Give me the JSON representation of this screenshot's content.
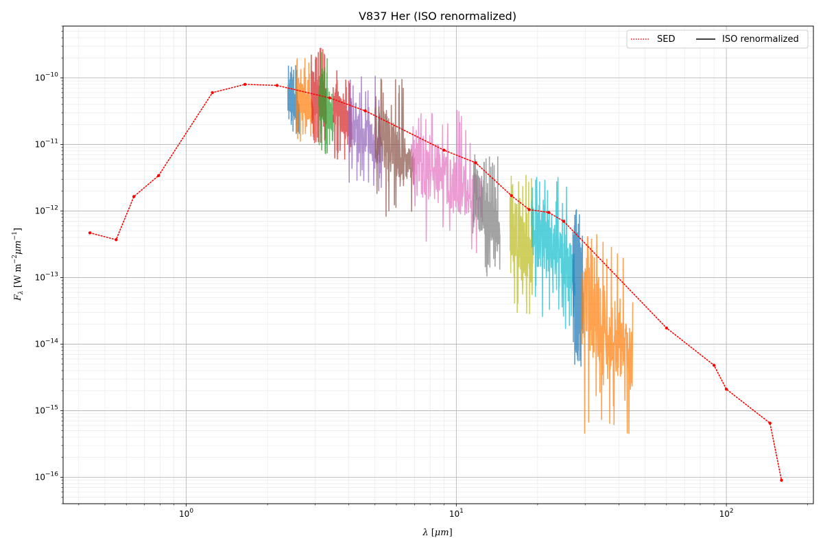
{
  "chart_data": {
    "type": "line",
    "title": "V837 Her (ISO renormalized)",
    "xlabel": {
      "lambda": "λ",
      "unit": "μm"
    },
    "ylabel": {
      "f": "F",
      "sub": "λ",
      "unit": "W m",
      "unit_exp": "−2",
      "per": "μm",
      "per_exp": "−1"
    },
    "x_scale": "log",
    "y_scale": "log",
    "xlim": [
      0.35,
      210
    ],
    "ylim": [
      4e-17,
      6e-10
    ],
    "x_ticks": [
      {
        "value": 1,
        "base": "10",
        "exp": "0"
      },
      {
        "value": 10,
        "base": "10",
        "exp": "1"
      },
      {
        "value": 100,
        "base": "10",
        "exp": "2"
      }
    ],
    "y_ticks": [
      {
        "value": 1e-10,
        "base": "10",
        "exp": "−10"
      },
      {
        "value": 1e-11,
        "base": "10",
        "exp": "−11"
      },
      {
        "value": 1e-12,
        "base": "10",
        "exp": "−12"
      },
      {
        "value": 1e-13,
        "base": "10",
        "exp": "−13"
      },
      {
        "value": 1e-14,
        "base": "10",
        "exp": "−14"
      },
      {
        "value": 1e-15,
        "base": "10",
        "exp": "−15"
      },
      {
        "value": 1e-16,
        "base": "10",
        "exp": "−16"
      }
    ],
    "grid": true,
    "legend_position": "top-right",
    "legend": [
      {
        "label": "SED",
        "style": "dotted",
        "color": "#ff0000"
      },
      {
        "label": "ISO renormalized",
        "style": "solid",
        "color": "#000000"
      }
    ],
    "sed": {
      "color": "#ff0000",
      "points": [
        [
          0.44,
          4.7e-13
        ],
        [
          0.55,
          3.7e-13
        ],
        [
          0.64,
          1.65e-12
        ],
        [
          0.79,
          3.4e-12
        ],
        [
          1.25,
          6e-11
        ],
        [
          1.65,
          8e-11
        ],
        [
          2.17,
          7.7e-11
        ],
        [
          3.4,
          5e-11
        ],
        [
          4.6,
          3.2e-11
        ],
        [
          9.0,
          8.2e-12
        ],
        [
          11.8,
          5.3e-12
        ],
        [
          16.0,
          1.7e-12
        ],
        [
          18.6,
          1.05e-12
        ],
        [
          22.0,
          9.5e-13
        ],
        [
          25.0,
          7e-13
        ],
        [
          60.0,
          1.75e-14
        ],
        [
          90.0,
          4.8e-15
        ],
        [
          100.0,
          2.1e-15
        ],
        [
          145.0,
          6.5e-16
        ],
        [
          160.0,
          9e-17
        ]
      ]
    },
    "iso_segments": [
      {
        "color": "#1f77b4",
        "x_range": [
          2.38,
          2.62
        ],
        "y_lo": 1.3e-11,
        "y_hi": 1e-10,
        "y_max": 1.7e-10
      },
      {
        "color": "#ff7f0e",
        "x_range": [
          2.55,
          2.95
        ],
        "y_lo": 1.1e-11,
        "y_hi": 1.2e-10,
        "y_max": 2.3e-10
      },
      {
        "color": "#d62728",
        "x_range": [
          2.9,
          3.3
        ],
        "y_lo": 1e-11,
        "y_hi": 1.5e-10,
        "y_max": 2.9e-10
      },
      {
        "color": "#2ca02c",
        "x_range": [
          3.1,
          3.5
        ],
        "y_lo": 7e-12,
        "y_hi": 1.2e-10,
        "y_max": 2.5e-10
      },
      {
        "color": "#d62728",
        "x_range": [
          3.5,
          4.1
        ],
        "y_lo": 6e-12,
        "y_hi": 8e-11,
        "y_max": 1.5e-10
      },
      {
        "color": "#9467bd",
        "x_range": [
          4.0,
          5.3
        ],
        "y_lo": 2e-12,
        "y_hi": 6e-11,
        "y_max": 1.2e-10
      },
      {
        "color": "#8c564b",
        "x_range": [
          5.0,
          7.0
        ],
        "y_lo": 8e-13,
        "y_hi": 5e-11,
        "y_max": 1e-10
      },
      {
        "color": "#e377c2",
        "x_range": [
          6.8,
          12.5
        ],
        "y_lo": 2e-13,
        "y_hi": 2.5e-11,
        "y_max": 3.3e-11
      },
      {
        "color": "#7f7f7f",
        "x_range": [
          11.5,
          14.5
        ],
        "y_lo": 1e-13,
        "y_hi": 5e-12,
        "y_max": 7e-12
      },
      {
        "color": "#bcbd22",
        "x_range": [
          15.8,
          19.2
        ],
        "y_lo": 2.5e-14,
        "y_hi": 2.5e-12,
        "y_max": 3.5e-12
      },
      {
        "color": "#17becf",
        "x_range": [
          19.0,
          27.5
        ],
        "y_lo": 1.7e-14,
        "y_hi": 2.5e-12,
        "y_max": 3.5e-12
      },
      {
        "color": "#1f77b4",
        "x_range": [
          27.0,
          29.5
        ],
        "y_lo": 3.5e-15,
        "y_hi": 6e-13,
        "y_max": 1.1e-12
      },
      {
        "color": "#ff7f0e",
        "x_range": [
          29.0,
          45.0
        ],
        "y_lo": 4.5e-16,
        "y_hi": 3e-13,
        "y_max": 4.5e-13
      }
    ]
  }
}
